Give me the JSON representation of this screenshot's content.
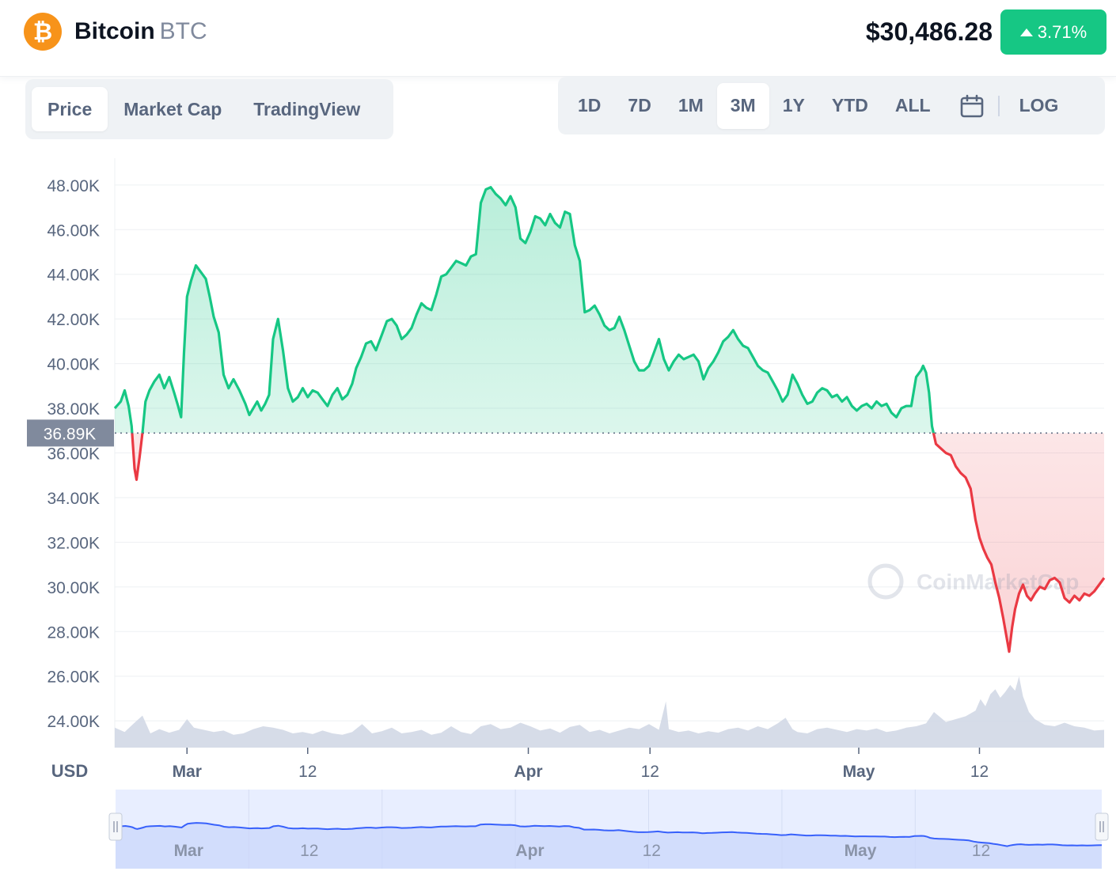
{
  "header": {
    "coin_name": "Bitcoin",
    "coin_symbol": "BTC",
    "logo_glyph": "₿",
    "price": "$30,486.28",
    "change": "3.71%",
    "change_color": "#16c784"
  },
  "tabs_left": [
    "Price",
    "Market Cap",
    "TradingView"
  ],
  "tabs_left_active": "Price",
  "tabs_right": [
    "1D",
    "7D",
    "1M",
    "3M",
    "1Y",
    "YTD",
    "ALL"
  ],
  "tabs_right_active": "3M",
  "calendar_icon": "calendar-icon",
  "log_label": "LOG",
  "colors": {
    "up": "#16c784",
    "down": "#ea3943",
    "volume": "#cfd6e4",
    "navigator_line": "#3861fb"
  },
  "chart_data": {
    "type": "area",
    "currency_label": "USD",
    "reference_price_label": "36.89K",
    "reference_price": 36890,
    "y_ticks": [
      "48.00K",
      "46.00K",
      "44.00K",
      "42.00K",
      "40.00K",
      "38.00K",
      "36.00K",
      "34.00K",
      "32.00K",
      "30.00K",
      "28.00K",
      "26.00K",
      "24.00K"
    ],
    "y_range": [
      22800,
      49200
    ],
    "x_ticks": [
      "Mar",
      "12",
      "Apr",
      "12",
      "May",
      "12"
    ],
    "x_range": [
      0,
      100
    ],
    "x_tick_positions": [
      7.3,
      19.5,
      41.8,
      54.1,
      75.2,
      87.4
    ],
    "watermark": "CoinMarketCap",
    "price_series": [
      [
        0,
        38000
      ],
      [
        0.6,
        38300
      ],
      [
        1.0,
        38800
      ],
      [
        1.4,
        38100
      ],
      [
        1.7,
        37200
      ],
      [
        2.0,
        35300
      ],
      [
        2.2,
        34800
      ],
      [
        2.5,
        35800
      ],
      [
        2.8,
        36900
      ],
      [
        3.1,
        38300
      ],
      [
        3.5,
        38800
      ],
      [
        4.0,
        39200
      ],
      [
        4.5,
        39500
      ],
      [
        5.0,
        38900
      ],
      [
        5.5,
        39400
      ],
      [
        6.0,
        38700
      ],
      [
        6.4,
        38100
      ],
      [
        6.7,
        37600
      ],
      [
        7.0,
        40500
      ],
      [
        7.3,
        43000
      ],
      [
        7.7,
        43700
      ],
      [
        8.2,
        44400
      ],
      [
        8.7,
        44100
      ],
      [
        9.2,
        43800
      ],
      [
        9.6,
        43000
      ],
      [
        10.0,
        42100
      ],
      [
        10.5,
        41400
      ],
      [
        11.0,
        39500
      ],
      [
        11.5,
        38900
      ],
      [
        12.0,
        39300
      ],
      [
        12.6,
        38800
      ],
      [
        13.2,
        38200
      ],
      [
        13.6,
        37700
      ],
      [
        14.0,
        38000
      ],
      [
        14.4,
        38300
      ],
      [
        14.8,
        37900
      ],
      [
        15.2,
        38200
      ],
      [
        15.6,
        38600
      ],
      [
        16.0,
        41100
      ],
      [
        16.5,
        42000
      ],
      [
        17.0,
        40600
      ],
      [
        17.5,
        38900
      ],
      [
        18.0,
        38300
      ],
      [
        18.5,
        38500
      ],
      [
        19.0,
        38900
      ],
      [
        19.5,
        38500
      ],
      [
        20.0,
        38800
      ],
      [
        20.5,
        38700
      ],
      [
        21.0,
        38400
      ],
      [
        21.5,
        38100
      ],
      [
        22.0,
        38600
      ],
      [
        22.5,
        38900
      ],
      [
        23.0,
        38400
      ],
      [
        23.5,
        38600
      ],
      [
        24.0,
        39100
      ],
      [
        24.4,
        39800
      ],
      [
        24.9,
        40300
      ],
      [
        25.4,
        40900
      ],
      [
        25.9,
        41000
      ],
      [
        26.4,
        40600
      ],
      [
        27.0,
        41300
      ],
      [
        27.5,
        41900
      ],
      [
        28.0,
        42000
      ],
      [
        28.5,
        41700
      ],
      [
        29.0,
        41100
      ],
      [
        29.5,
        41300
      ],
      [
        30.0,
        41600
      ],
      [
        30.5,
        42200
      ],
      [
        31.0,
        42700
      ],
      [
        31.5,
        42500
      ],
      [
        32.0,
        42400
      ],
      [
        32.5,
        43100
      ],
      [
        33.0,
        43900
      ],
      [
        33.5,
        44000
      ],
      [
        34.0,
        44300
      ],
      [
        34.5,
        44600
      ],
      [
        35.0,
        44500
      ],
      [
        35.5,
        44400
      ],
      [
        36.0,
        44800
      ],
      [
        36.5,
        44900
      ],
      [
        37.0,
        47200
      ],
      [
        37.5,
        47800
      ],
      [
        38.0,
        47900
      ],
      [
        38.5,
        47600
      ],
      [
        39.0,
        47400
      ],
      [
        39.5,
        47100
      ],
      [
        40.0,
        47500
      ],
      [
        40.5,
        47000
      ],
      [
        41.0,
        45600
      ],
      [
        41.5,
        45400
      ],
      [
        42.0,
        45900
      ],
      [
        42.5,
        46600
      ],
      [
        43.0,
        46500
      ],
      [
        43.5,
        46200
      ],
      [
        44.0,
        46700
      ],
      [
        44.5,
        46300
      ],
      [
        45.0,
        46100
      ],
      [
        45.5,
        46800
      ],
      [
        46.0,
        46700
      ],
      [
        46.5,
        45300
      ],
      [
        47.0,
        44600
      ],
      [
        47.5,
        42300
      ],
      [
        48.0,
        42400
      ],
      [
        48.5,
        42600
      ],
      [
        49.0,
        42200
      ],
      [
        49.5,
        41700
      ],
      [
        50.0,
        41500
      ],
      [
        50.5,
        41600
      ],
      [
        51.0,
        42100
      ],
      [
        51.5,
        41500
      ],
      [
        52.0,
        40800
      ],
      [
        52.5,
        40100
      ],
      [
        53.0,
        39700
      ],
      [
        53.5,
        39700
      ],
      [
        54.0,
        39900
      ],
      [
        54.5,
        40500
      ],
      [
        55.0,
        41100
      ],
      [
        55.5,
        40200
      ],
      [
        56.0,
        39700
      ],
      [
        56.5,
        40100
      ],
      [
        57.0,
        40400
      ],
      [
        57.5,
        40200
      ],
      [
        58.0,
        40300
      ],
      [
        58.5,
        40400
      ],
      [
        59.0,
        40100
      ],
      [
        59.5,
        39300
      ],
      [
        60.0,
        39800
      ],
      [
        60.5,
        40100
      ],
      [
        61.0,
        40500
      ],
      [
        61.5,
        41000
      ],
      [
        62.0,
        41200
      ],
      [
        62.5,
        41500
      ],
      [
        63.0,
        41100
      ],
      [
        63.5,
        40800
      ],
      [
        64.0,
        40700
      ],
      [
        64.5,
        40300
      ],
      [
        65.0,
        39900
      ],
      [
        65.5,
        39700
      ],
      [
        66.0,
        39600
      ],
      [
        66.5,
        39200
      ],
      [
        67.0,
        38800
      ],
      [
        67.5,
        38300
      ],
      [
        68.0,
        38600
      ],
      [
        68.5,
        39500
      ],
      [
        69.0,
        39100
      ],
      [
        69.5,
        38600
      ],
      [
        70.0,
        38200
      ],
      [
        70.5,
        38300
      ],
      [
        71.0,
        38700
      ],
      [
        71.5,
        38900
      ],
      [
        72.0,
        38800
      ],
      [
        72.5,
        38500
      ],
      [
        73.0,
        38600
      ],
      [
        73.5,
        38300
      ],
      [
        74.0,
        38500
      ],
      [
        74.5,
        38100
      ],
      [
        75.0,
        37900
      ],
      [
        75.5,
        38100
      ],
      [
        76.0,
        38200
      ],
      [
        76.5,
        38000
      ],
      [
        77.0,
        38300
      ],
      [
        77.5,
        38100
      ],
      [
        78.0,
        38200
      ],
      [
        78.5,
        37800
      ],
      [
        79.0,
        37600
      ],
      [
        79.5,
        38000
      ],
      [
        80.0,
        38100
      ],
      [
        80.5,
        38100
      ],
      [
        81.0,
        39400
      ],
      [
        81.5,
        39700
      ],
      [
        81.7,
        39900
      ],
      [
        82.0,
        39600
      ],
      [
        82.3,
        38700
      ],
      [
        82.6,
        37200
      ],
      [
        83.0,
        36400
      ],
      [
        83.5,
        36200
      ],
      [
        84.0,
        36000
      ],
      [
        84.5,
        35900
      ],
      [
        85.0,
        35400
      ],
      [
        85.5,
        35100
      ],
      [
        86.0,
        34900
      ],
      [
        86.5,
        34400
      ],
      [
        87.0,
        33000
      ],
      [
        87.4,
        32200
      ],
      [
        87.8,
        31700
      ],
      [
        88.2,
        31300
      ],
      [
        88.6,
        31000
      ],
      [
        89.0,
        30200
      ],
      [
        89.4,
        29500
      ],
      [
        89.8,
        28600
      ],
      [
        90.2,
        27600
      ],
      [
        90.4,
        27100
      ],
      [
        90.7,
        28200
      ],
      [
        91.0,
        29000
      ],
      [
        91.4,
        29700
      ],
      [
        91.8,
        30100
      ],
      [
        92.2,
        29600
      ],
      [
        92.6,
        29400
      ],
      [
        93.0,
        29700
      ],
      [
        93.5,
        30000
      ],
      [
        94.0,
        29900
      ],
      [
        94.5,
        30300
      ],
      [
        95.0,
        30400
      ],
      [
        95.5,
        30200
      ],
      [
        96.0,
        29500
      ],
      [
        96.5,
        29300
      ],
      [
        97.0,
        29600
      ],
      [
        97.5,
        29400
      ],
      [
        98.0,
        29700
      ],
      [
        98.5,
        29600
      ],
      [
        99.0,
        29800
      ],
      [
        99.5,
        30100
      ],
      [
        100.0,
        30400
      ]
    ],
    "volume_series": [
      [
        0,
        0.28
      ],
      [
        1,
        0.22
      ],
      [
        2,
        0.35
      ],
      [
        2.8,
        0.45
      ],
      [
        3.6,
        0.2
      ],
      [
        4.5,
        0.26
      ],
      [
        5.5,
        0.21
      ],
      [
        6.5,
        0.25
      ],
      [
        7.3,
        0.4
      ],
      [
        8,
        0.28
      ],
      [
        9,
        0.25
      ],
      [
        10,
        0.22
      ],
      [
        11,
        0.24
      ],
      [
        12,
        0.18
      ],
      [
        13,
        0.2
      ],
      [
        14,
        0.26
      ],
      [
        15,
        0.3
      ],
      [
        16,
        0.28
      ],
      [
        17,
        0.25
      ],
      [
        18,
        0.2
      ],
      [
        19,
        0.22
      ],
      [
        20,
        0.19
      ],
      [
        21,
        0.24
      ],
      [
        22,
        0.2
      ],
      [
        23,
        0.18
      ],
      [
        24,
        0.22
      ],
      [
        25,
        0.33
      ],
      [
        26,
        0.2
      ],
      [
        27,
        0.23
      ],
      [
        28,
        0.28
      ],
      [
        29,
        0.2
      ],
      [
        30,
        0.22
      ],
      [
        31,
        0.25
      ],
      [
        32,
        0.18
      ],
      [
        33,
        0.21
      ],
      [
        34,
        0.3
      ],
      [
        35,
        0.22
      ],
      [
        36,
        0.19
      ],
      [
        37,
        0.3
      ],
      [
        38,
        0.33
      ],
      [
        39,
        0.26
      ],
      [
        40,
        0.28
      ],
      [
        41,
        0.35
      ],
      [
        42,
        0.3
      ],
      [
        43,
        0.24
      ],
      [
        44,
        0.27
      ],
      [
        45,
        0.21
      ],
      [
        46,
        0.29
      ],
      [
        47,
        0.32
      ],
      [
        48,
        0.22
      ],
      [
        49,
        0.25
      ],
      [
        50,
        0.2
      ],
      [
        51,
        0.24
      ],
      [
        52,
        0.28
      ],
      [
        53,
        0.26
      ],
      [
        54,
        0.33
      ],
      [
        55,
        0.25
      ],
      [
        55.7,
        0.65
      ],
      [
        56,
        0.26
      ],
      [
        57,
        0.22
      ],
      [
        58,
        0.24
      ],
      [
        59,
        0.2
      ],
      [
        60,
        0.23
      ],
      [
        61,
        0.21
      ],
      [
        62,
        0.26
      ],
      [
        63,
        0.28
      ],
      [
        64,
        0.24
      ],
      [
        65,
        0.3
      ],
      [
        66,
        0.26
      ],
      [
        67,
        0.34
      ],
      [
        67.8,
        0.42
      ],
      [
        68.5,
        0.26
      ],
      [
        69,
        0.22
      ],
      [
        70,
        0.2
      ],
      [
        71,
        0.26
      ],
      [
        72,
        0.28
      ],
      [
        73,
        0.25
      ],
      [
        74,
        0.22
      ],
      [
        75,
        0.26
      ],
      [
        76,
        0.24
      ],
      [
        77,
        0.27
      ],
      [
        78,
        0.22
      ],
      [
        79,
        0.24
      ],
      [
        80,
        0.28
      ],
      [
        81,
        0.3
      ],
      [
        82,
        0.34
      ],
      [
        82.8,
        0.5
      ],
      [
        83.5,
        0.42
      ],
      [
        84,
        0.36
      ],
      [
        85,
        0.4
      ],
      [
        86,
        0.44
      ],
      [
        87,
        0.52
      ],
      [
        87.5,
        0.68
      ],
      [
        88,
        0.58
      ],
      [
        88.5,
        0.75
      ],
      [
        89,
        0.82
      ],
      [
        89.5,
        0.7
      ],
      [
        90,
        0.78
      ],
      [
        90.5,
        0.88
      ],
      [
        91,
        0.8
      ],
      [
        91.4,
        1.0
      ],
      [
        91.8,
        0.72
      ],
      [
        92.4,
        0.5
      ],
      [
        93,
        0.4
      ],
      [
        94,
        0.32
      ],
      [
        95,
        0.3
      ],
      [
        96,
        0.35
      ],
      [
        97,
        0.3
      ],
      [
        98,
        0.28
      ],
      [
        99,
        0.24
      ],
      [
        100,
        0.25
      ]
    ]
  }
}
